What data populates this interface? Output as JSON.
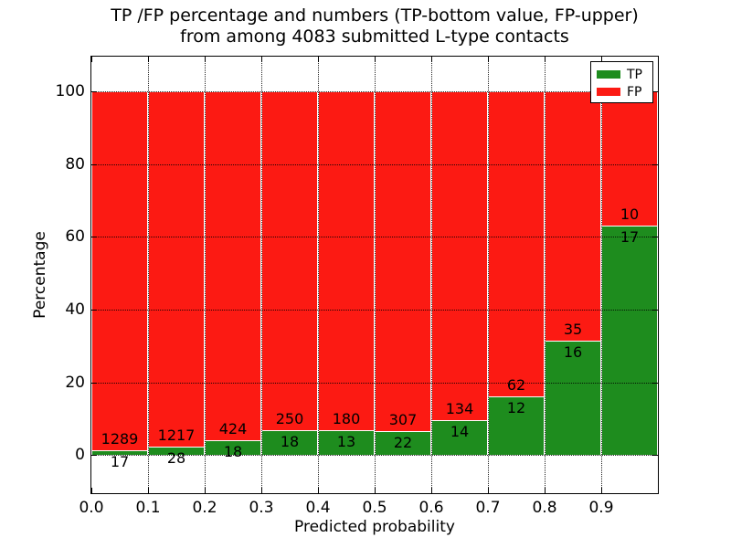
{
  "chart_data": {
    "type": "bar",
    "stacked": true,
    "title_lines": [
      "TP /FP percentage and numbers (TP-bottom value, FP-upper)",
      "from among 4083 submitted L-type contacts"
    ],
    "xlabel": "Predicted probability",
    "ylabel": "Percentage",
    "xlim": [
      0.0,
      1.0
    ],
    "ylim": [
      -10.5,
      109.5
    ],
    "bin_starts": [
      0.0,
      0.1,
      0.2,
      0.3,
      0.4,
      0.5,
      0.6,
      0.7,
      0.8,
      0.9
    ],
    "bin_width": 0.1,
    "xticks": [
      "0.0",
      "0.1",
      "0.2",
      "0.3",
      "0.4",
      "0.5",
      "0.6",
      "0.7",
      "0.8",
      "0.9"
    ],
    "ytick_values": [
      0,
      20,
      40,
      60,
      80,
      100
    ],
    "yticks": [
      "0",
      "20",
      "40",
      "60",
      "80",
      "100"
    ],
    "grid": {
      "on": true,
      "style": "dotted"
    },
    "series": [
      {
        "name": "TP",
        "color": "#1e8c1e",
        "counts": [
          17,
          28,
          18,
          18,
          13,
          22,
          14,
          12,
          16,
          17
        ],
        "percent": [
          1.3,
          2.25,
          4.07,
          6.72,
          6.74,
          6.69,
          9.46,
          16.22,
          31.37,
          62.96
        ]
      },
      {
        "name": "FP",
        "color": "#fc1a13",
        "counts": [
          1289,
          1217,
          424,
          250,
          180,
          307,
          134,
          62,
          35,
          10
        ],
        "percent": [
          98.7,
          97.75,
          95.93,
          93.28,
          93.26,
          93.31,
          90.54,
          83.78,
          68.63,
          37.04
        ]
      }
    ],
    "legend": {
      "position": "upper-right",
      "entries": [
        {
          "label": "TP",
          "color": "#1e8c1e"
        },
        {
          "label": "FP",
          "color": "#fc1a13"
        }
      ]
    }
  }
}
